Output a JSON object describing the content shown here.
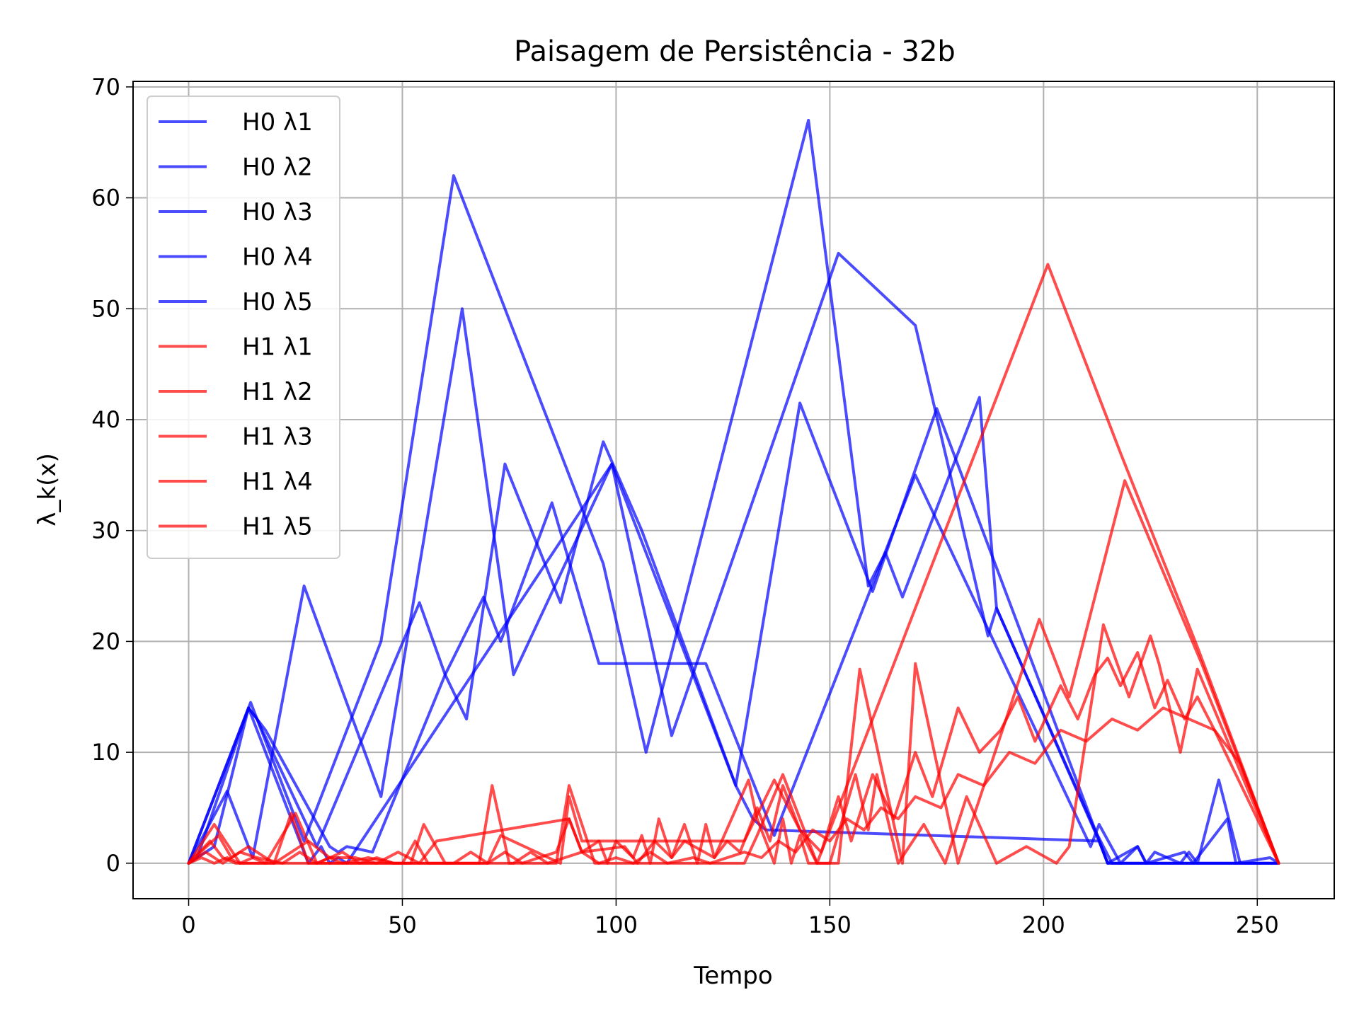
{
  "chart_data": {
    "type": "line",
    "title": "Paisagem de Persistência - 32b",
    "xlabel": "Tempo",
    "ylabel": "λ_k(x)",
    "xlim": [
      -13,
      268
    ],
    "ylim": [
      -3.2,
      70.5
    ],
    "xticks": [
      0,
      50,
      100,
      150,
      200,
      250
    ],
    "yticks": [
      0,
      10,
      20,
      30,
      40,
      50,
      60,
      70
    ],
    "grid": true,
    "legend_position": "top-left",
    "series": [
      {
        "name": "H0 λ1",
        "color": "#0000ff",
        "opacity": 0.7,
        "x": [
          0,
          14.5,
          27,
          45,
          62,
          84,
          97,
          107,
          145,
          159,
          163,
          167,
          185,
          189,
          213,
          215,
          255
        ],
        "y": [
          0,
          14.5,
          2,
          20,
          62,
          40,
          27,
          10,
          67,
          25,
          28,
          24,
          42,
          23,
          2,
          0,
          0
        ]
      },
      {
        "name": "H0 λ2",
        "color": "#0000ff",
        "opacity": 0.7,
        "x": [
          0,
          9,
          15,
          27,
          45,
          64,
          76,
          99,
          113,
          152,
          170,
          187,
          189,
          212,
          216,
          255
        ],
        "y": [
          0,
          6.5,
          0.5,
          25,
          6,
          50,
          17,
          36,
          11.5,
          55,
          48.5,
          20.5,
          23,
          3,
          0,
          0
        ]
      },
      {
        "name": "H0 λ3",
        "color": "#0000ff",
        "opacity": 0.7,
        "x": [
          0,
          2,
          14,
          16,
          30,
          54,
          60,
          65,
          74,
          87,
          97,
          106,
          128,
          143,
          160,
          175,
          215,
          255
        ],
        "y": [
          0,
          0.5,
          14,
          13,
          1.5,
          23.5,
          17,
          13,
          36,
          23.5,
          38,
          30,
          7,
          41.5,
          24.5,
          41,
          0,
          0
        ]
      },
      {
        "name": "H0 λ4",
        "color": "#0000ff",
        "opacity": 0.7,
        "x": [
          0,
          6,
          14,
          18,
          33,
          35,
          37,
          43,
          60,
          69,
          73,
          85,
          96,
          121,
          137,
          170,
          211,
          213,
          218,
          222,
          224,
          226,
          232,
          234,
          236,
          241,
          246,
          255
        ],
        "y": [
          0,
          1.5,
          14,
          12,
          1.5,
          1,
          1.5,
          1,
          17,
          24,
          20,
          32.5,
          18,
          18,
          2.5,
          35,
          1.5,
          3.5,
          0,
          1.5,
          0,
          1,
          0,
          1,
          0,
          7.5,
          0,
          0
        ]
      },
      {
        "name": "H0 λ5",
        "color": "#0000ff",
        "opacity": 0.7,
        "x": [
          0,
          14,
          28,
          31,
          33,
          35,
          37,
          99,
          115,
          128,
          132,
          135,
          213,
          215,
          222,
          224,
          233,
          235,
          243,
          245,
          253,
          255
        ],
        "y": [
          0,
          14,
          0,
          1.5,
          0,
          0.5,
          0,
          36,
          20,
          7,
          4,
          3,
          2,
          0,
          1.5,
          0,
          1,
          0,
          4,
          0,
          0.5,
          0
        ]
      },
      {
        "name": "H1 λ1",
        "color": "#ff0000",
        "opacity": 0.7,
        "x": [
          0,
          6,
          12,
          20,
          24,
          28,
          33,
          50,
          53,
          56,
          60,
          68,
          71,
          75,
          86,
          89,
          95,
          130,
          133,
          139,
          147,
          201,
          213,
          218,
          236,
          255
        ],
        "y": [
          0,
          3.5,
          0,
          0,
          4.5,
          0,
          0,
          0,
          2,
          0,
          0,
          0,
          7,
          0,
          0,
          7,
          0,
          0,
          2.5,
          8,
          0,
          54,
          42,
          37,
          19.5,
          0
        ]
      },
      {
        "name": "H1 λ2",
        "color": "#ff0000",
        "opacity": 0.7,
        "x": [
          0,
          5,
          8,
          11,
          18,
          25,
          30,
          52,
          55,
          60,
          70,
          73,
          87,
          89,
          92,
          130,
          137,
          147,
          152,
          157,
          167,
          170,
          180,
          199,
          206,
          219,
          237,
          255
        ],
        "y": [
          0,
          2,
          0.5,
          0,
          0,
          4.5,
          0,
          0,
          3.5,
          0,
          0,
          2.5,
          0,
          6,
          2,
          2,
          7.5,
          0,
          0,
          17.5,
          0,
          18,
          0,
          22,
          15,
          34.5,
          18,
          0
        ]
      },
      {
        "name": "H1 λ3",
        "color": "#ff0000",
        "opacity": 0.7,
        "x": [
          0,
          7,
          10,
          14,
          20,
          28,
          33,
          39,
          44,
          49,
          54,
          58,
          89,
          92,
          96,
          98,
          100,
          104,
          106,
          108,
          110,
          113,
          116,
          119,
          121,
          123,
          127,
          131,
          133,
          137,
          139,
          141,
          143,
          145,
          150,
          156,
          159,
          161,
          166,
          172,
          177,
          182,
          189,
          196,
          203,
          206,
          214,
          220,
          225,
          227,
          232,
          236,
          255
        ],
        "y": [
          0,
          2.5,
          0.5,
          1.5,
          0,
          2,
          0.5,
          0.5,
          0,
          1,
          0,
          2,
          4,
          1,
          2,
          0,
          2,
          0.5,
          2.5,
          0,
          4,
          0.5,
          3.5,
          0,
          3.5,
          0.5,
          4,
          7.5,
          4,
          0,
          4,
          0,
          2.5,
          0,
          0,
          8,
          3,
          8,
          0,
          3.5,
          0,
          6,
          0,
          1.5,
          0,
          1.5,
          21.5,
          15,
          20.5,
          18,
          10,
          17.5,
          0
        ]
      },
      {
        "name": "H1 λ4",
        "color": "#ff0000",
        "opacity": 0.7,
        "x": [
          0,
          4,
          8,
          12,
          16,
          22,
          26,
          30,
          36,
          40,
          44,
          48,
          62,
          66,
          70,
          74,
          78,
          82,
          86,
          89,
          92,
          102,
          105,
          109,
          113,
          116,
          123,
          126,
          129,
          133,
          136,
          139,
          143,
          148,
          152,
          155,
          160,
          165,
          170,
          174,
          180,
          185,
          190,
          194,
          198,
          204,
          208,
          212,
          215,
          218,
          222,
          226,
          229,
          233,
          236,
          240,
          245,
          255
        ],
        "y": [
          0,
          1,
          0,
          1,
          0.5,
          0,
          1,
          0,
          1,
          0,
          0.5,
          0,
          0,
          1,
          0,
          1,
          0,
          0.5,
          1,
          4,
          1,
          1.5,
          0,
          2,
          0.5,
          2,
          0.5,
          2,
          1,
          5,
          2,
          7,
          3,
          1,
          6,
          2,
          8,
          4,
          10,
          6,
          14,
          10,
          12,
          15,
          11,
          16,
          13,
          17,
          18.5,
          16,
          19,
          14,
          16.5,
          13,
          15,
          12,
          8,
          0
        ]
      },
      {
        "name": "H1 λ5",
        "color": "#ff0000",
        "opacity": 0.7,
        "x": [
          0,
          3,
          6,
          9,
          12,
          15,
          18,
          30,
          33,
          36,
          42,
          48,
          76,
          80,
          84,
          88,
          92,
          96,
          100,
          104,
          108,
          112,
          118,
          122,
          130,
          134,
          138,
          142,
          146,
          150,
          154,
          158,
          162,
          166,
          170,
          176,
          180,
          186,
          192,
          198,
          204,
          210,
          216,
          222,
          228,
          234,
          240,
          246,
          255
        ],
        "y": [
          0,
          0.5,
          0,
          0.5,
          0,
          0.5,
          0,
          0,
          0.5,
          0,
          0.5,
          0,
          0,
          1,
          0,
          0.5,
          1,
          0,
          0.5,
          0,
          1,
          0,
          0.5,
          0,
          1,
          0.5,
          2,
          1,
          3,
          2,
          4,
          3,
          5,
          4,
          6,
          5,
          8,
          7,
          10,
          9,
          12,
          11,
          13,
          12,
          14,
          13,
          12,
          9,
          0
        ]
      }
    ]
  }
}
